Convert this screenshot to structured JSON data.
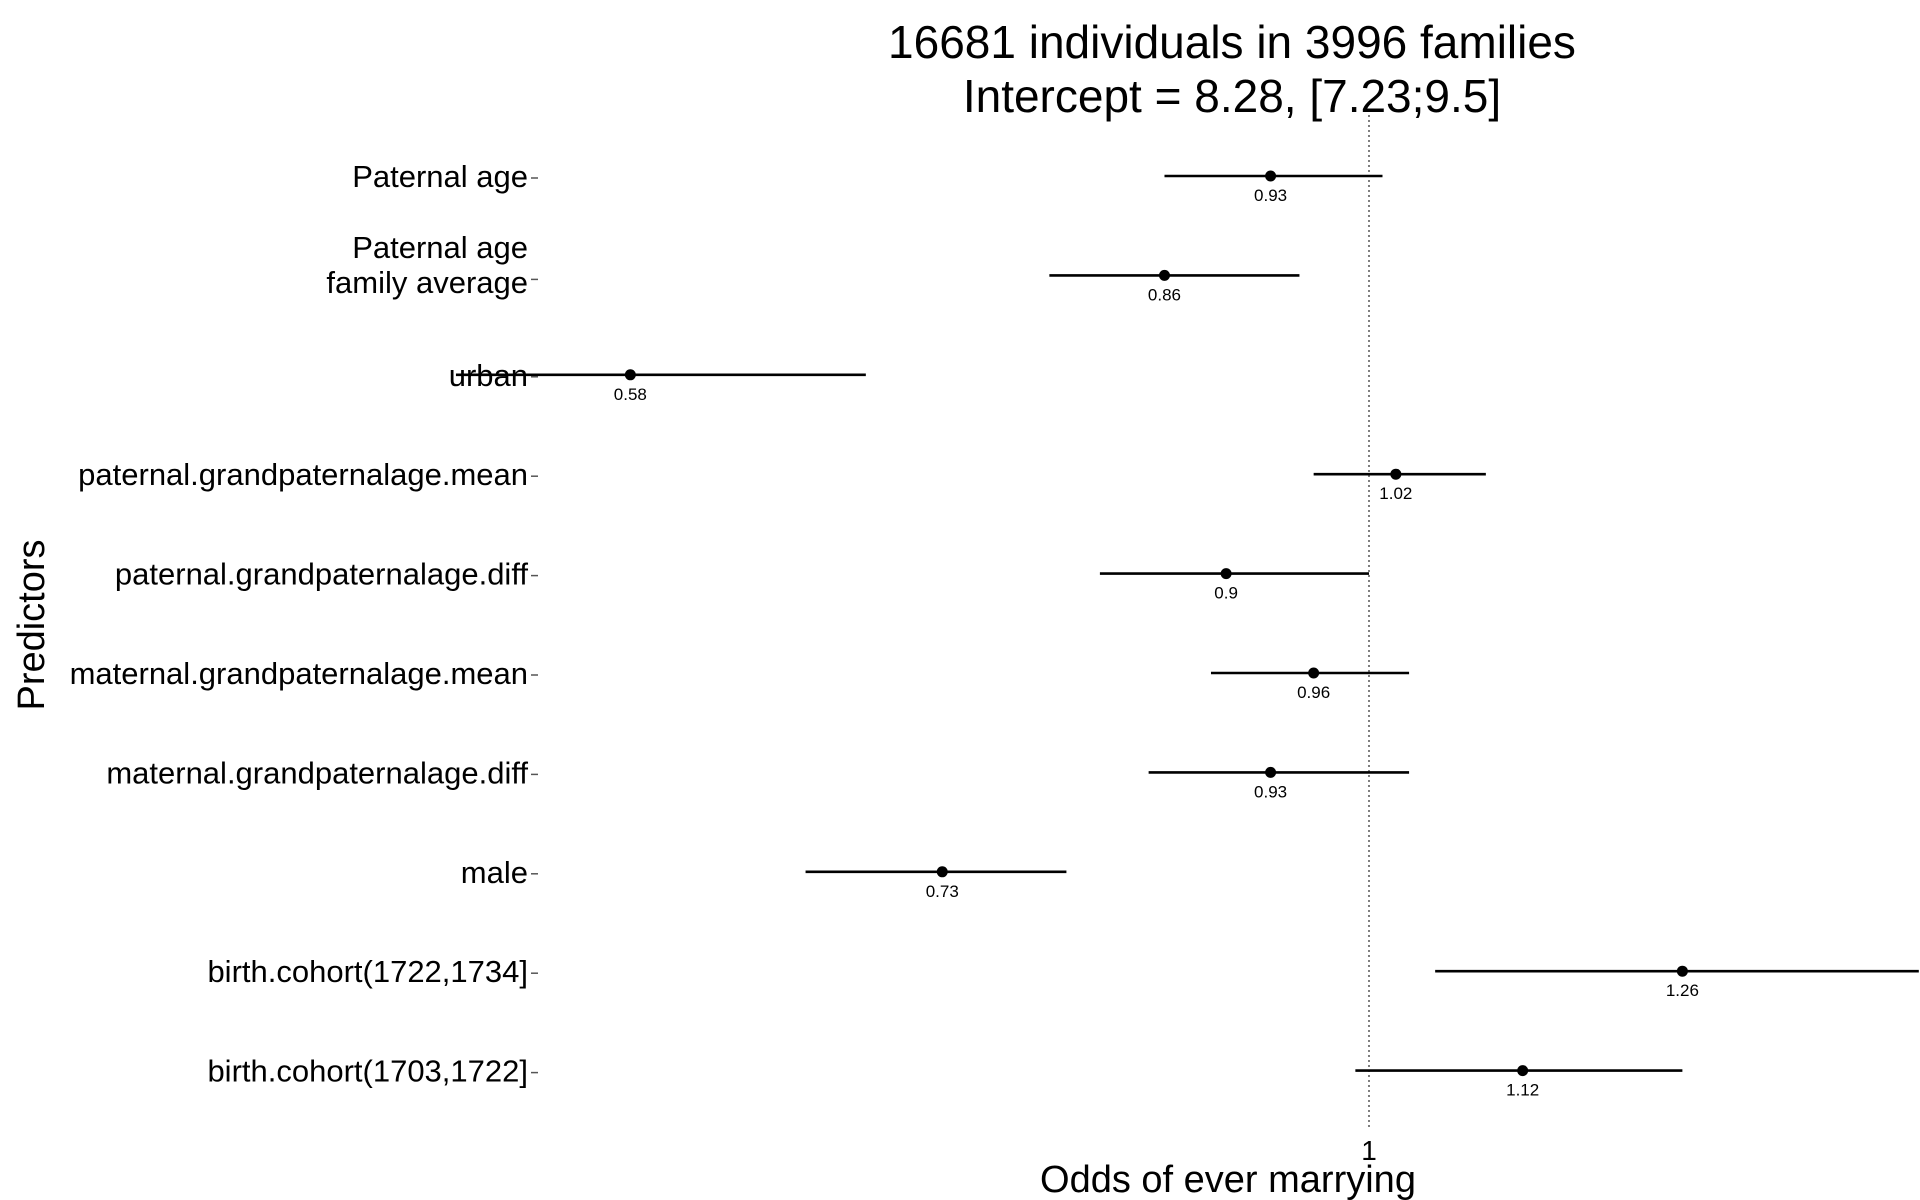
{
  "chart_data": {
    "type": "forest",
    "title": [
      "16681 individuals in 3996 families",
      "Intercept = 8.28, [7.23;9.5]"
    ],
    "xlabel": "Odds of ever marrying",
    "ylabel": "Predictors",
    "x_scale": "log",
    "x_ticks": [
      {
        "value": 1,
        "label": "1"
      }
    ],
    "reference_line": 1,
    "grid": false,
    "legend": "none",
    "colors": {
      "points": "#000000",
      "reference": "#555555"
    },
    "predictors": [
      {
        "label": [
          "Paternal age"
        ],
        "estimate": 0.93,
        "value_label": "0.93",
        "ci": [
          0.86,
          1.01
        ]
      },
      {
        "label": [
          "Paternal age",
          "family average"
        ],
        "estimate": 0.86,
        "value_label": "0.86",
        "ci": [
          0.79,
          0.95
        ]
      },
      {
        "label": [
          "urban"
        ],
        "estimate": 0.58,
        "value_label": "0.58",
        "ci": [
          0.51,
          0.69
        ]
      },
      {
        "label": [
          "paternal.grandpaternalage.mean"
        ],
        "estimate": 1.02,
        "value_label": "1.02",
        "ci": [
          0.96,
          1.09
        ]
      },
      {
        "label": [
          "paternal.grandpaternalage.diff"
        ],
        "estimate": 0.9,
        "value_label": "0.9",
        "ci": [
          0.82,
          1.0
        ]
      },
      {
        "label": [
          "maternal.grandpaternalage.mean"
        ],
        "estimate": 0.96,
        "value_label": "0.96",
        "ci": [
          0.89,
          1.03
        ]
      },
      {
        "label": [
          "maternal.grandpaternalage.diff"
        ],
        "estimate": 0.93,
        "value_label": "0.93",
        "ci": [
          0.85,
          1.03
        ]
      },
      {
        "label": [
          "male"
        ],
        "estimate": 0.73,
        "value_label": "0.73",
        "ci": [
          0.66,
          0.8
        ]
      },
      {
        "label": [
          "birth.cohort(1722,1734]"
        ],
        "estimate": 1.26,
        "value_label": "1.26",
        "ci": [
          1.05,
          1.5
        ]
      },
      {
        "label": [
          "birth.cohort(1703,1722]"
        ],
        "estimate": 1.12,
        "value_label": "1.12",
        "ci": [
          0.99,
          1.26
        ]
      }
    ]
  }
}
